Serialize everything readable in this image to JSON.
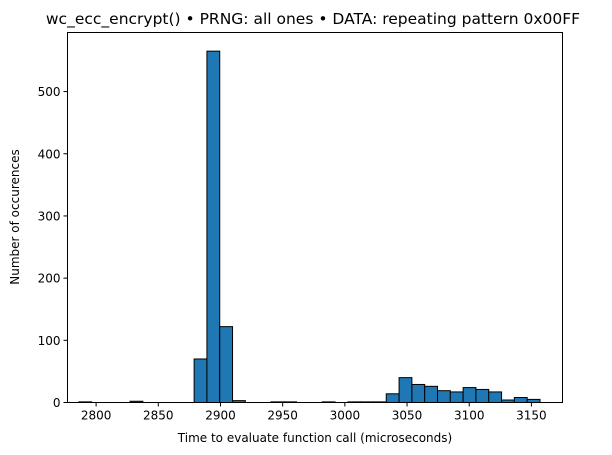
{
  "chart_data": {
    "type": "bar",
    "title": "wc_ecc_encrypt() • PRNG: all ones • DATA: repeating pattern 0x00FF",
    "xlabel": "Time to evaluate function call (microseconds)",
    "ylabel": "Number of occurences",
    "xlim": [
      2777,
      3175
    ],
    "ylim": [
      0,
      595
    ],
    "xticks": [
      2800,
      2850,
      2900,
      2950,
      3000,
      3050,
      3100,
      3150
    ],
    "yticks": [
      0,
      100,
      200,
      300,
      400,
      500
    ],
    "grid": false,
    "bar_color": "#1f77b4",
    "edge_color": "#000000",
    "bins": [
      {
        "x0": 2786.1,
        "x1": 2796.4,
        "value": 1
      },
      {
        "x0": 2796.4,
        "x1": 2806.7,
        "value": 0
      },
      {
        "x0": 2806.7,
        "x1": 2817.0,
        "value": 0
      },
      {
        "x0": 2817.0,
        "x1": 2827.3,
        "value": 0
      },
      {
        "x0": 2827.3,
        "x1": 2837.6,
        "value": 2
      },
      {
        "x0": 2837.6,
        "x1": 2847.9,
        "value": 0
      },
      {
        "x0": 2847.9,
        "x1": 2858.2,
        "value": 0
      },
      {
        "x0": 2858.2,
        "x1": 2868.5,
        "value": 0
      },
      {
        "x0": 2868.5,
        "x1": 2878.8,
        "value": 0
      },
      {
        "x0": 2878.8,
        "x1": 2889.1,
        "value": 70
      },
      {
        "x0": 2889.1,
        "x1": 2899.4,
        "value": 565
      },
      {
        "x0": 2899.4,
        "x1": 2909.7,
        "value": 122
      },
      {
        "x0": 2909.7,
        "x1": 2920.0,
        "value": 3
      },
      {
        "x0": 2920.0,
        "x1": 2930.3,
        "value": 0
      },
      {
        "x0": 2930.3,
        "x1": 2940.6,
        "value": 0
      },
      {
        "x0": 2940.6,
        "x1": 2950.9,
        "value": 1
      },
      {
        "x0": 2950.9,
        "x1": 2961.2,
        "value": 1
      },
      {
        "x0": 2961.2,
        "x1": 2971.5,
        "value": 0
      },
      {
        "x0": 2971.5,
        "x1": 2981.8,
        "value": 0
      },
      {
        "x0": 2981.8,
        "x1": 2992.1,
        "value": 1
      },
      {
        "x0": 2992.1,
        "x1": 3002.4,
        "value": 0
      },
      {
        "x0": 3002.4,
        "x1": 3012.7,
        "value": 1
      },
      {
        "x0": 3012.7,
        "x1": 3023.0,
        "value": 1
      },
      {
        "x0": 3023.0,
        "x1": 3033.3,
        "value": 1
      },
      {
        "x0": 3033.3,
        "x1": 3043.6,
        "value": 14
      },
      {
        "x0": 3043.6,
        "x1": 3053.9,
        "value": 40
      },
      {
        "x0": 3053.9,
        "x1": 3064.2,
        "value": 29
      },
      {
        "x0": 3064.2,
        "x1": 3074.5,
        "value": 26
      },
      {
        "x0": 3074.5,
        "x1": 3084.8,
        "value": 19
      },
      {
        "x0": 3084.8,
        "x1": 3095.1,
        "value": 17
      },
      {
        "x0": 3095.1,
        "x1": 3105.4,
        "value": 24
      },
      {
        "x0": 3105.4,
        "x1": 3115.7,
        "value": 21
      },
      {
        "x0": 3115.7,
        "x1": 3126.0,
        "value": 17
      },
      {
        "x0": 3126.0,
        "x1": 3136.3,
        "value": 4
      },
      {
        "x0": 3136.3,
        "x1": 3146.6,
        "value": 8
      },
      {
        "x0": 3146.6,
        "x1": 3156.9,
        "value": 5
      }
    ]
  }
}
